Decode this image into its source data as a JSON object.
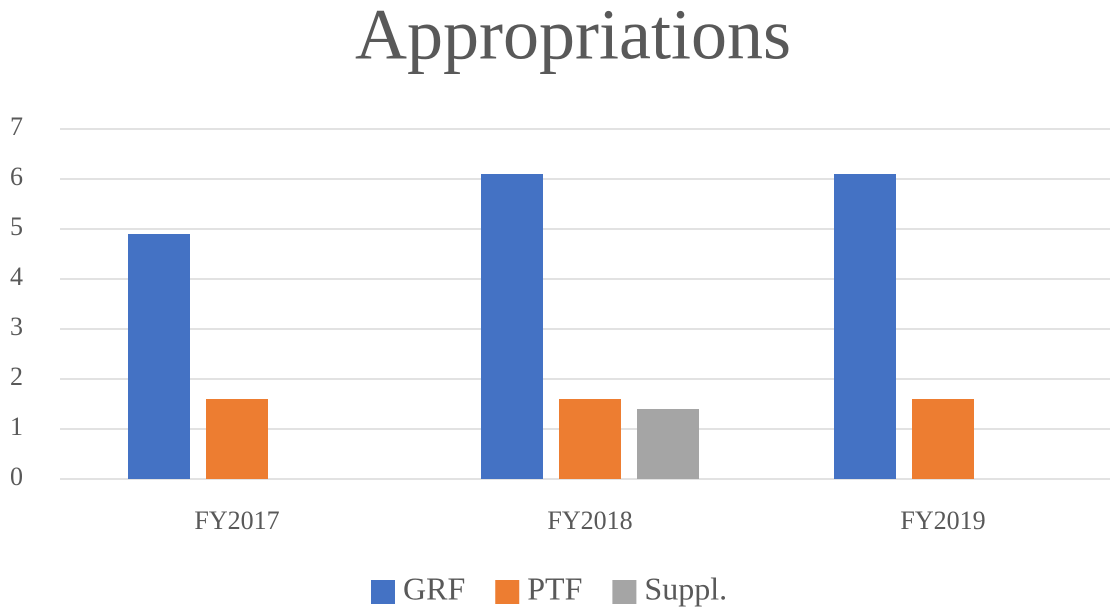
{
  "chart_data": {
    "type": "bar",
    "title": "Appropriations",
    "categories": [
      "FY2017",
      "FY2018",
      "FY2019"
    ],
    "series": [
      {
        "name": "GRF",
        "color": "#4472c4",
        "values": [
          4.9,
          6.1,
          6.1
        ]
      },
      {
        "name": "PTF",
        "color": "#ed7d31",
        "values": [
          1.6,
          1.6,
          1.6
        ]
      },
      {
        "name": "Suppl.",
        "color": "#a5a5a5",
        "values": [
          null,
          1.4,
          null
        ]
      }
    ],
    "ylim": [
      0,
      7
    ],
    "yticks": [
      0,
      1,
      2,
      3,
      4,
      5,
      6,
      7
    ],
    "grid": true,
    "legend": "bottom"
  }
}
